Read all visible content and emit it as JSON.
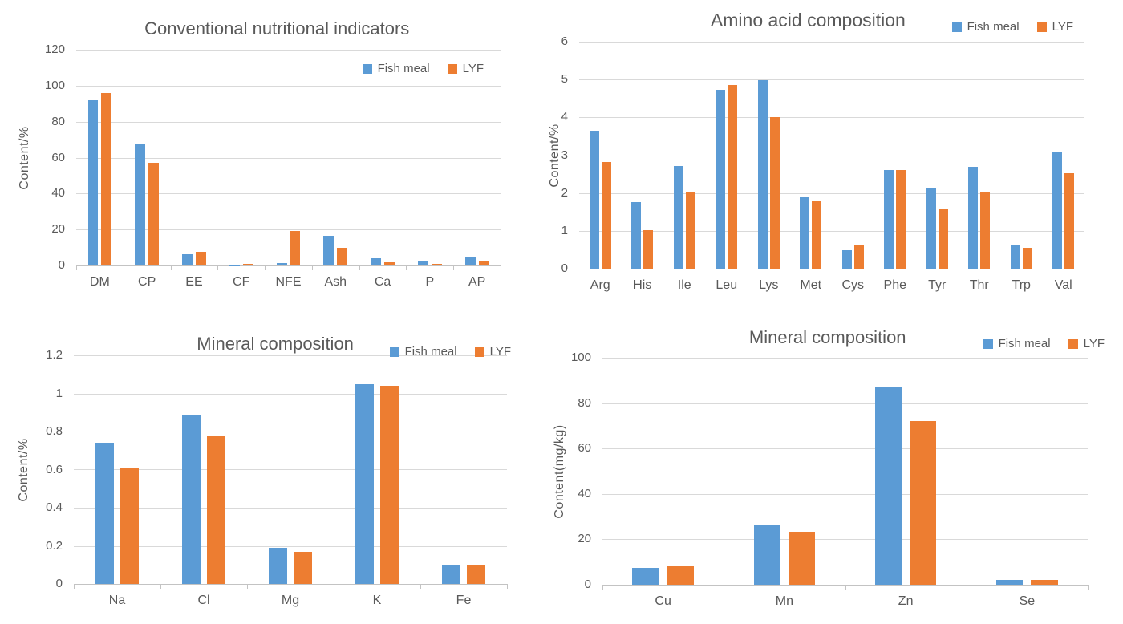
{
  "figure": {
    "description": "Four grouped bar charts comparing Fish meal and LYF nutritional composition",
    "background": "#FFFFFF"
  },
  "colors": {
    "series_fish_meal": "#5B9BD5",
    "series_lyf": "#ED7D31",
    "text": "#595959",
    "gridline": "#D9D9D9",
    "axis_line": "#C3C3C3",
    "background": "#FFFFFF"
  },
  "legend_labels": [
    "Fish meal",
    "LYF"
  ],
  "chart_data": [
    {
      "type": "bar",
      "title": "Conventional nutritional indicators",
      "xlabel": "",
      "ylabel": "Content/%",
      "ylim": [
        0,
        120
      ],
      "ytick_step": 20,
      "grid": true,
      "legend_position": "inside-top-right",
      "categories": [
        "DM",
        "CP",
        "EE",
        "CF",
        "NFE",
        "Ash",
        "Ca",
        "P",
        "AP"
      ],
      "series": [
        {
          "name": "Fish meal",
          "values": [
            92,
            67.4,
            6.3,
            0.2,
            1.4,
            16.3,
            3.9,
            2.7,
            4.7
          ]
        },
        {
          "name": "LYF",
          "values": [
            96,
            57.2,
            7.5,
            1,
            19.4,
            9.8,
            1.9,
            1,
            2.2
          ]
        }
      ]
    },
    {
      "type": "bar",
      "title": "Amino acid composition",
      "xlabel": "",
      "ylabel": "Content/%",
      "ylim": [
        0,
        6
      ],
      "ytick_step": 1,
      "grid": true,
      "legend_position": "top-right",
      "categories": [
        "Arg",
        "His",
        "Ile",
        "Leu",
        "Lys",
        "Met",
        "Cys",
        "Phe",
        "Tyr",
        "Thr",
        "Trp",
        "Val"
      ],
      "series": [
        {
          "name": "Fish meal",
          "values": [
            3.64,
            1.77,
            2.72,
            4.73,
            4.98,
            1.88,
            0.49,
            2.61,
            2.15,
            2.7,
            0.62,
            3.1
          ]
        },
        {
          "name": "LYF",
          "values": [
            2.82,
            1.02,
            2.03,
            4.85,
            4.01,
            1.78,
            0.64,
            2.6,
            1.59,
            2.03,
            0.56,
            2.53
          ]
        }
      ]
    },
    {
      "type": "bar",
      "title": "Mineral composition",
      "xlabel": "",
      "ylabel": "Content/%",
      "ylim": [
        0,
        1.2
      ],
      "ytick_step": 0.2,
      "grid": true,
      "legend_position": "top-right",
      "categories": [
        "Na",
        "Cl",
        "Mg",
        "K",
        "Fe"
      ],
      "series": [
        {
          "name": "Fish meal",
          "values": [
            0.74,
            0.89,
            0.19,
            1.05,
            0.095
          ]
        },
        {
          "name": "LYF",
          "values": [
            0.605,
            0.78,
            0.17,
            1.04,
            0.095
          ]
        }
      ]
    },
    {
      "type": "bar",
      "title": "Mineral composition",
      "xlabel": "",
      "ylabel": "Content(mg/kg)",
      "ylim": [
        0,
        100
      ],
      "ytick_step": 20,
      "grid": true,
      "legend_position": "top-right",
      "categories": [
        "Cu",
        "Mn",
        "Zn",
        "Se"
      ],
      "series": [
        {
          "name": "Fish meal",
          "values": [
            7.3,
            26,
            87,
            2
          ]
        },
        {
          "name": "LYF",
          "values": [
            8.3,
            23.2,
            72,
            2
          ]
        }
      ]
    }
  ]
}
